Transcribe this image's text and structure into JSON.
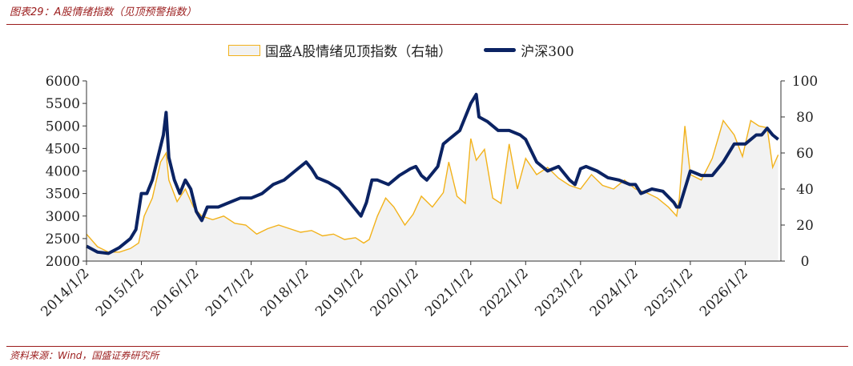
{
  "header": {
    "title": "图表29：A股情绪指数（见顶预警指数）"
  },
  "footer": {
    "source": "资料来源：Wind，国盛证券研究所"
  },
  "colors": {
    "area_fill": "#f2f2f2",
    "area_line": "#f2b21b",
    "csi300": "#0b2363",
    "accent": "#9b1c1c"
  },
  "chart_data": {
    "type": "line",
    "legend": {
      "placement": "top-center"
    },
    "legend_area_label": "国盛A股情绪见顶指数（右轴）",
    "legend_line_label": "沪深300",
    "x_tick_labels": [
      "2014/1/2",
      "2015/1/2",
      "2016/1/2",
      "2017/1/2",
      "2018/1/2",
      "2019/1/2",
      "2020/1/2",
      "2021/1/2",
      "2022/1/2",
      "2023/1/2",
      "2024/1/2",
      "2025/1/2",
      "2026/1/2"
    ],
    "y_left": {
      "min": 2000,
      "max": 6000,
      "ticks": [
        "2000",
        "2500",
        "3000",
        "3500",
        "4000",
        "4500",
        "5000",
        "5500",
        "6000"
      ]
    },
    "y_right": {
      "min": 0,
      "max": 100,
      "ticks": [
        "0",
        "20",
        "40",
        "60",
        "80",
        "100"
      ]
    },
    "grid": false,
    "series": [
      {
        "name": "沪深300",
        "axis": "left",
        "type": "line",
        "x": [
          2014.0,
          2014.2,
          2014.4,
          2014.6,
          2014.8,
          2014.9,
          2015.0,
          2015.1,
          2015.2,
          2015.3,
          2015.4,
          2015.45,
          2015.5,
          2015.6,
          2015.7,
          2015.8,
          2015.9,
          2016.0,
          2016.1,
          2016.2,
          2016.4,
          2016.6,
          2016.8,
          2017.0,
          2017.2,
          2017.4,
          2017.6,
          2017.8,
          2018.0,
          2018.1,
          2018.2,
          2018.4,
          2018.6,
          2018.8,
          2019.0,
          2019.1,
          2019.2,
          2019.3,
          2019.5,
          2019.7,
          2019.9,
          2020.0,
          2020.1,
          2020.2,
          2020.4,
          2020.5,
          2020.6,
          2020.8,
          2021.0,
          2021.1,
          2021.15,
          2021.3,
          2021.5,
          2021.7,
          2021.9,
          2022.0,
          2022.2,
          2022.4,
          2022.6,
          2022.8,
          2022.9,
          2023.0,
          2023.1,
          2023.3,
          2023.5,
          2023.7,
          2023.9,
          2024.0,
          2024.1,
          2024.3,
          2024.5,
          2024.7,
          2024.75,
          2024.8,
          2025.0,
          2025.2,
          2025.4,
          2025.6,
          2025.8,
          2026.0,
          2026.2,
          2026.3,
          2026.4,
          2026.5,
          2026.6
        ],
        "y": [
          2330,
          2200,
          2170,
          2300,
          2500,
          2700,
          3500,
          3500,
          3800,
          4300,
          4800,
          5300,
          4300,
          3800,
          3500,
          3800,
          3600,
          3100,
          2900,
          3200,
          3200,
          3300,
          3400,
          3400,
          3500,
          3700,
          3800,
          4000,
          4200,
          4050,
          3850,
          3750,
          3600,
          3300,
          3000,
          3300,
          3800,
          3800,
          3700,
          3900,
          4050,
          4100,
          3900,
          3800,
          4100,
          4600,
          4700,
          4900,
          5500,
          5700,
          5200,
          5100,
          4900,
          4900,
          4800,
          4700,
          4200,
          4000,
          4100,
          3800,
          3700,
          4050,
          4100,
          4000,
          3850,
          3800,
          3700,
          3700,
          3500,
          3600,
          3550,
          3300,
          3200,
          3200,
          4000,
          3900,
          3900,
          4200,
          4600,
          4600,
          4800,
          4800,
          4950,
          4800,
          4700
        ]
      },
      {
        "name": "国盛A股情绪见顶指数（右轴）",
        "axis": "right",
        "type": "area",
        "x": [
          2014.0,
          2014.2,
          2014.4,
          2014.6,
          2014.8,
          2014.95,
          2015.05,
          2015.2,
          2015.35,
          2015.45,
          2015.5,
          2015.65,
          2015.8,
          2015.95,
          2016.1,
          2016.3,
          2016.5,
          2016.7,
          2016.9,
          2017.1,
          2017.3,
          2017.5,
          2017.7,
          2017.9,
          2018.1,
          2018.3,
          2018.5,
          2018.7,
          2018.9,
          2019.05,
          2019.15,
          2019.3,
          2019.45,
          2019.6,
          2019.8,
          2019.95,
          2020.1,
          2020.3,
          2020.5,
          2020.6,
          2020.75,
          2020.9,
          2021.0,
          2021.1,
          2021.25,
          2021.4,
          2021.55,
          2021.7,
          2021.85,
          2022.0,
          2022.2,
          2022.4,
          2022.6,
          2022.8,
          2023.0,
          2023.2,
          2023.4,
          2023.6,
          2023.8,
          2024.0,
          2024.2,
          2024.4,
          2024.6,
          2024.75,
          2024.8,
          2024.9,
          2025.0,
          2025.2,
          2025.4,
          2025.6,
          2025.8,
          2025.95,
          2026.1,
          2026.25,
          2026.4,
          2026.5,
          2026.6
        ],
        "y": [
          15,
          8,
          5,
          5,
          7,
          10,
          25,
          35,
          55,
          60,
          45,
          33,
          40,
          30,
          25,
          23,
          25,
          21,
          20,
          15,
          18,
          20,
          18,
          16,
          17,
          14,
          15,
          12,
          13,
          10,
          12,
          25,
          35,
          30,
          20,
          26,
          36,
          30,
          38,
          55,
          36,
          32,
          68,
          56,
          62,
          35,
          32,
          65,
          40,
          57,
          48,
          52,
          46,
          42,
          40,
          48,
          42,
          40,
          45,
          40,
          38,
          35,
          30,
          25,
          35,
          75,
          48,
          45,
          57,
          78,
          70,
          58,
          78,
          75,
          74,
          52,
          59
        ]
      }
    ]
  }
}
